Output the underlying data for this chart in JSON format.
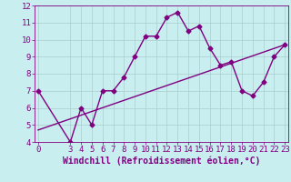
{
  "xlabel": "Windchill (Refroidissement éolien,°C)",
  "x_data": [
    0,
    3,
    4,
    5,
    6,
    7,
    8,
    9,
    10,
    11,
    12,
    13,
    14,
    15,
    16,
    17,
    18,
    19,
    20,
    21,
    22,
    23
  ],
  "y_data": [
    7.0,
    4.0,
    6.0,
    5.0,
    7.0,
    7.0,
    7.8,
    9.0,
    10.2,
    10.2,
    11.3,
    11.6,
    10.5,
    10.8,
    9.5,
    8.5,
    8.7,
    7.0,
    6.7,
    7.5,
    9.0,
    9.7
  ],
  "trend_x": [
    0,
    23
  ],
  "trend_y": [
    4.7,
    9.7
  ],
  "line_color": "#800080",
  "bg_color": "#c8eef0",
  "grid_color": "#aacccc",
  "axis_label_color": "#800080",
  "tick_label_color": "#800080",
  "xlim": [
    -0.3,
    23.3
  ],
  "ylim": [
    4,
    12
  ],
  "yticks": [
    4,
    5,
    6,
    7,
    8,
    9,
    10,
    11,
    12
  ],
  "xticks": [
    0,
    3,
    4,
    5,
    6,
    7,
    8,
    9,
    10,
    11,
    12,
    13,
    14,
    15,
    16,
    17,
    18,
    19,
    20,
    21,
    22,
    23
  ],
  "marker_size": 2.5,
  "line_width": 1.0,
  "font_size_label": 7.0,
  "font_size_tick": 6.5
}
